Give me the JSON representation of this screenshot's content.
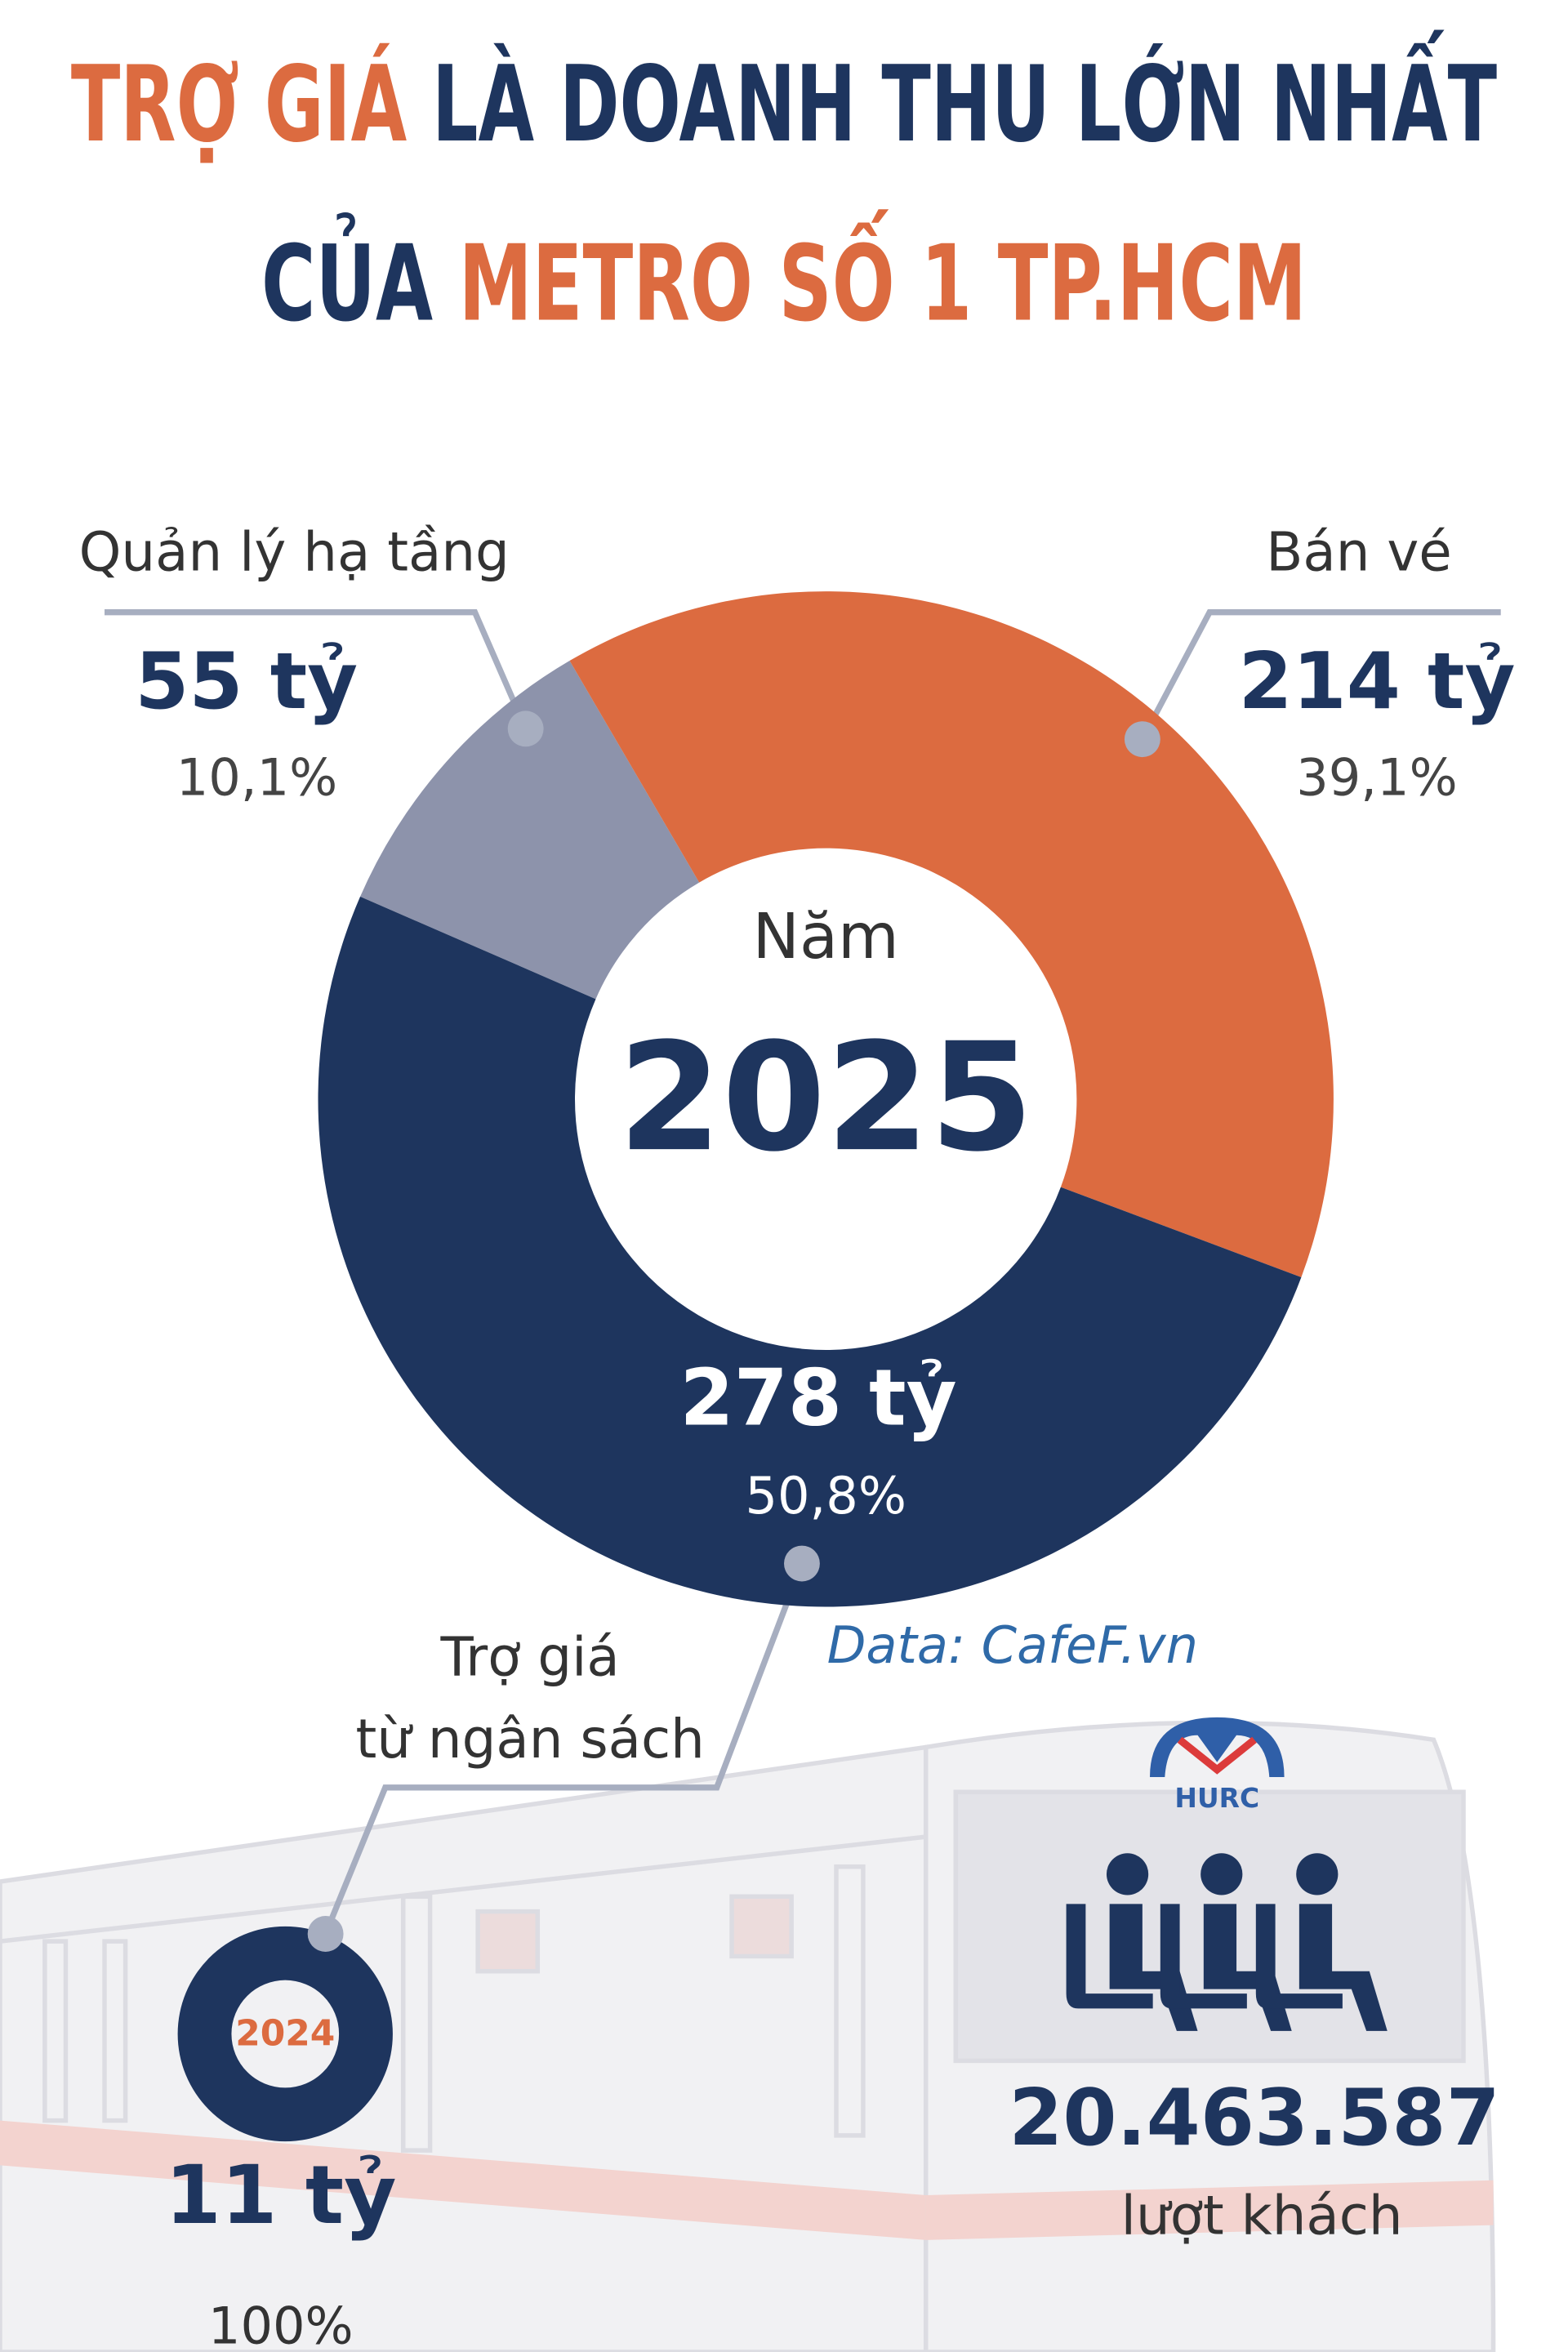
{
  "chart_data": [
    {
      "type": "pie",
      "title": [
        [
          {
            "text": "TRỢ GIÁ",
            "color": "#dc6b40"
          },
          {
            "text": "LÀ DOANH THU LỚN NHẤT",
            "color": "#1e355e"
          }
        ],
        [
          {
            "text": "CỦA",
            "color": "#1e355e"
          },
          {
            "text": "METRO SỐ 1 TP.HCM",
            "color": "#dc6b40"
          }
        ]
      ],
      "center_label": "Năm",
      "center_value": "2025",
      "categories": [
        "Quản lý hạ tầng",
        "Bán vé",
        "Trợ giá\ntừ ngân sách"
      ],
      "values": [
        55,
        214,
        278
      ],
      "value_labels": [
        "55 tỷ",
        "214 tỷ",
        "278 tỷ"
      ],
      "percent_values": [
        10.1,
        39.1,
        50.8
      ],
      "percent_labels": [
        "10,1%",
        "39,1%",
        "50,8%"
      ],
      "colors": [
        "#8d93ab",
        "#dc6b40",
        "#1e355e"
      ],
      "source": "Data: CafeF.vn"
    },
    {
      "type": "pie",
      "center_value": "2024",
      "values": [
        11
      ],
      "value_labels": [
        "11 tỷ"
      ],
      "percent_values": [
        100
      ],
      "percent_labels": [
        "100%"
      ],
      "colors": [
        "#1e355e"
      ]
    }
  ],
  "logo": "HURC",
  "passengers": {
    "value": "20.463.587",
    "label": "lượt khách"
  }
}
